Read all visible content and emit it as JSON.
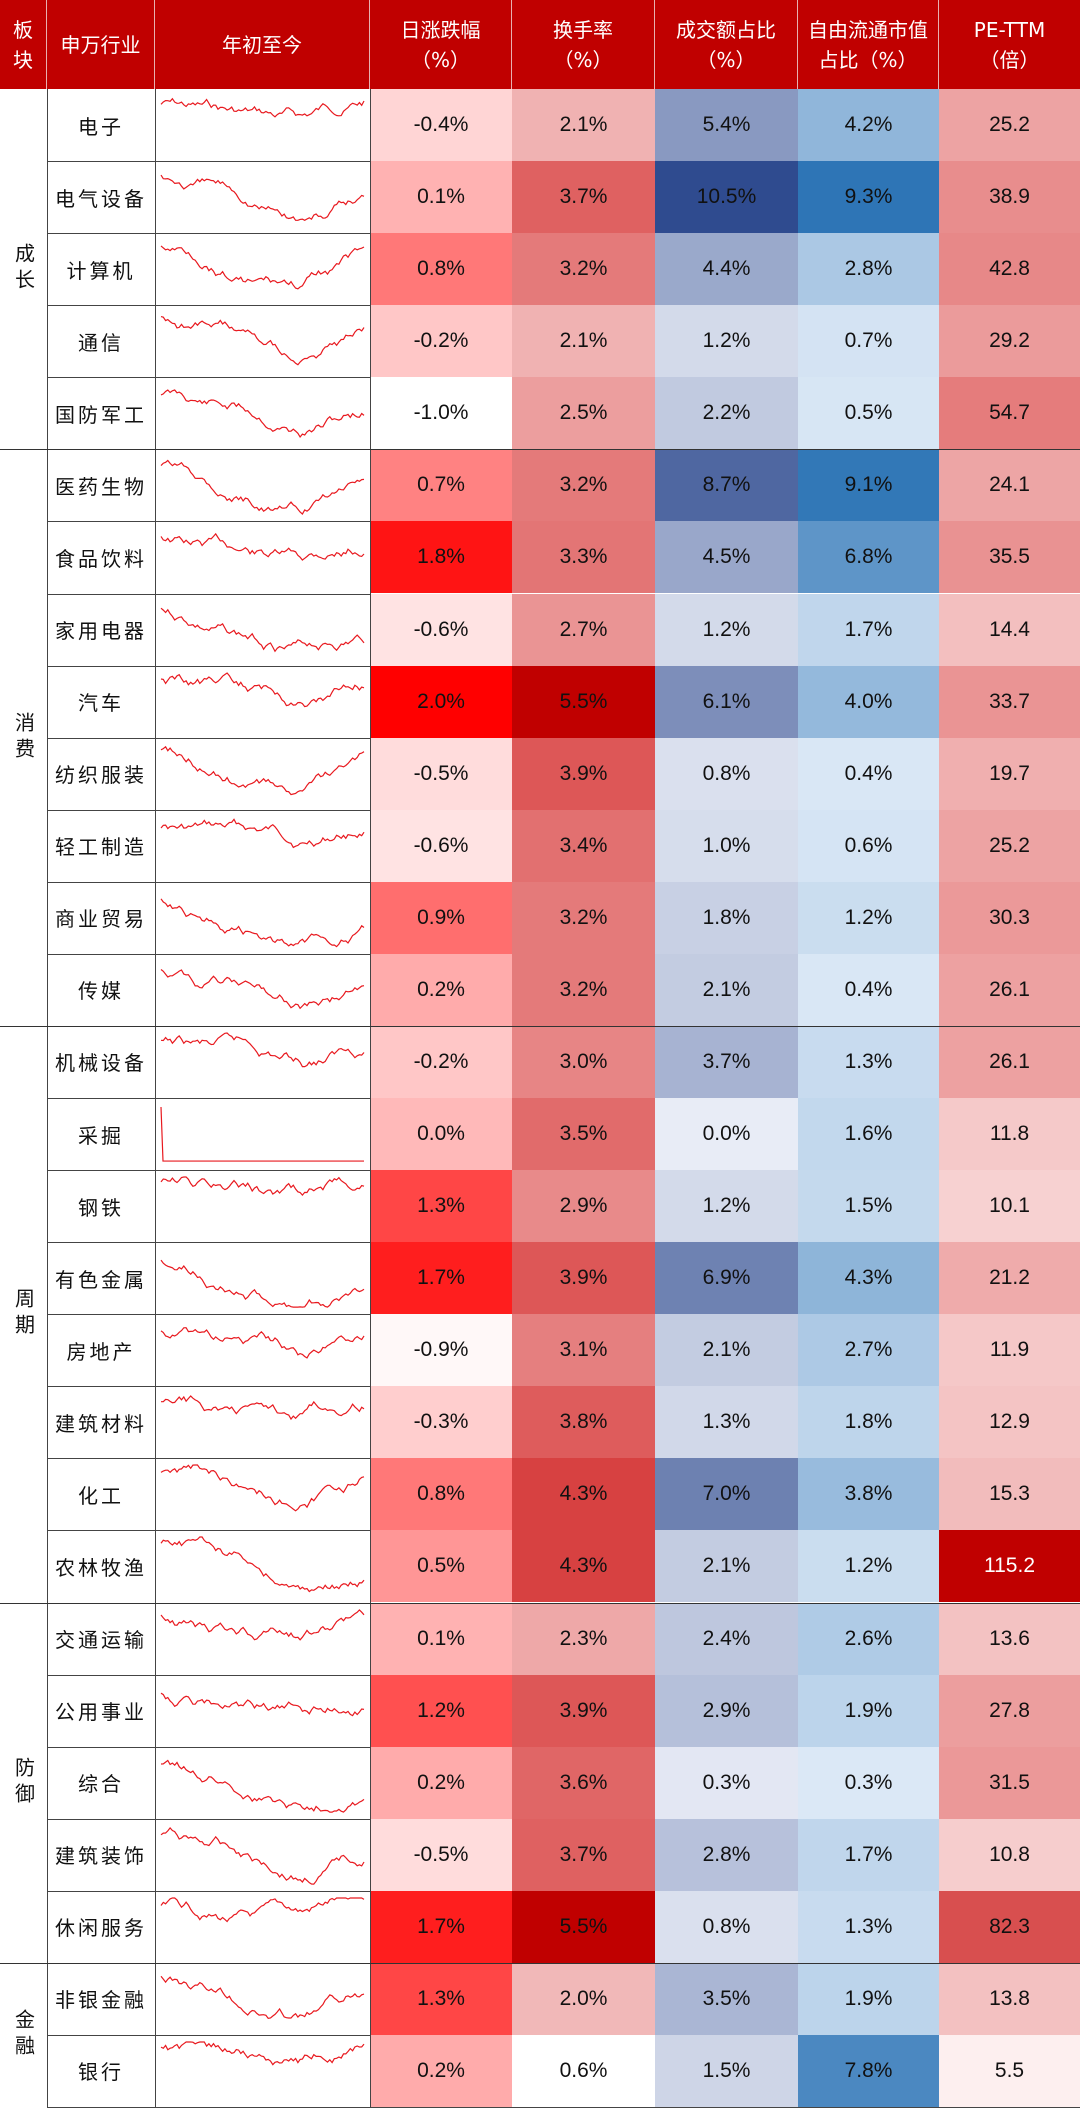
{
  "headers": {
    "sector": "板\n块",
    "industry": "申万行业",
    "ytd": "年初至今",
    "daily_change": "日涨跌幅\n（%）",
    "turnover": "换手率\n（%）",
    "volume_share": "成交额占比\n（%）",
    "float_cap_share": "自由流通市值\n占比（%）",
    "pe_ttm": "PE-TTM\n（倍）"
  },
  "groups": [
    {
      "name": "成长",
      "count": 5
    },
    {
      "name": "消费",
      "count": 8
    },
    {
      "name": "周期",
      "count": 8
    },
    {
      "name": "防御",
      "count": 5
    },
    {
      "name": "金融",
      "count": 2
    }
  ],
  "rows": [
    {
      "industry": "电子",
      "daily_change": "-0.4%",
      "turnover": "2.1%",
      "volume_share": "5.4%",
      "float_cap_share": "4.2%",
      "pe_ttm": "25.2"
    },
    {
      "industry": "电气设备",
      "daily_change": "0.1%",
      "turnover": "3.7%",
      "volume_share": "10.5%",
      "float_cap_share": "9.3%",
      "pe_ttm": "38.9"
    },
    {
      "industry": "计算机",
      "daily_change": "0.8%",
      "turnover": "3.2%",
      "volume_share": "4.4%",
      "float_cap_share": "2.8%",
      "pe_ttm": "42.8"
    },
    {
      "industry": "通信",
      "daily_change": "-0.2%",
      "turnover": "2.1%",
      "volume_share": "1.2%",
      "float_cap_share": "0.7%",
      "pe_ttm": "29.2"
    },
    {
      "industry": "国防军工",
      "daily_change": "-1.0%",
      "turnover": "2.5%",
      "volume_share": "2.2%",
      "float_cap_share": "0.5%",
      "pe_ttm": "54.7"
    },
    {
      "industry": "医药生物",
      "daily_change": "0.7%",
      "turnover": "3.2%",
      "volume_share": "8.7%",
      "float_cap_share": "9.1%",
      "pe_ttm": "24.1"
    },
    {
      "industry": "食品饮料",
      "daily_change": "1.8%",
      "turnover": "3.3%",
      "volume_share": "4.5%",
      "float_cap_share": "6.8%",
      "pe_ttm": "35.5"
    },
    {
      "industry": "家用电器",
      "daily_change": "-0.6%",
      "turnover": "2.7%",
      "volume_share": "1.2%",
      "float_cap_share": "1.7%",
      "pe_ttm": "14.4"
    },
    {
      "industry": "汽车",
      "daily_change": "2.0%",
      "turnover": "5.5%",
      "volume_share": "6.1%",
      "float_cap_share": "4.0%",
      "pe_ttm": "33.7"
    },
    {
      "industry": "纺织服装",
      "daily_change": "-0.5%",
      "turnover": "3.9%",
      "volume_share": "0.8%",
      "float_cap_share": "0.4%",
      "pe_ttm": "19.7"
    },
    {
      "industry": "轻工制造",
      "daily_change": "-0.6%",
      "turnover": "3.4%",
      "volume_share": "1.0%",
      "float_cap_share": "0.6%",
      "pe_ttm": "25.2"
    },
    {
      "industry": "商业贸易",
      "daily_change": "0.9%",
      "turnover": "3.2%",
      "volume_share": "1.8%",
      "float_cap_share": "1.2%",
      "pe_ttm": "30.3"
    },
    {
      "industry": "传媒",
      "daily_change": "0.2%",
      "turnover": "3.2%",
      "volume_share": "2.1%",
      "float_cap_share": "0.4%",
      "pe_ttm": "26.1"
    },
    {
      "industry": "机械设备",
      "daily_change": "-0.2%",
      "turnover": "3.0%",
      "volume_share": "3.7%",
      "float_cap_share": "1.3%",
      "pe_ttm": "26.1"
    },
    {
      "industry": "采掘",
      "daily_change": "0.0%",
      "turnover": "3.5%",
      "volume_share": "0.0%",
      "float_cap_share": "1.6%",
      "pe_ttm": "11.8"
    },
    {
      "industry": "钢铁",
      "daily_change": "1.3%",
      "turnover": "2.9%",
      "volume_share": "1.2%",
      "float_cap_share": "1.5%",
      "pe_ttm": "10.1"
    },
    {
      "industry": "有色金属",
      "daily_change": "1.7%",
      "turnover": "3.9%",
      "volume_share": "6.9%",
      "float_cap_share": "4.3%",
      "pe_ttm": "21.2"
    },
    {
      "industry": "房地产",
      "daily_change": "-0.9%",
      "turnover": "3.1%",
      "volume_share": "2.1%",
      "float_cap_share": "2.7%",
      "pe_ttm": "11.9"
    },
    {
      "industry": "建筑材料",
      "daily_change": "-0.3%",
      "turnover": "3.8%",
      "volume_share": "1.3%",
      "float_cap_share": "1.8%",
      "pe_ttm": "12.9"
    },
    {
      "industry": "化工",
      "daily_change": "0.8%",
      "turnover": "4.3%",
      "volume_share": "7.0%",
      "float_cap_share": "3.8%",
      "pe_ttm": "15.3"
    },
    {
      "industry": "农林牧渔",
      "daily_change": "0.5%",
      "turnover": "4.3%",
      "volume_share": "2.1%",
      "float_cap_share": "1.2%",
      "pe_ttm": "115.2"
    },
    {
      "industry": "交通运输",
      "daily_change": "0.1%",
      "turnover": "2.3%",
      "volume_share": "2.4%",
      "float_cap_share": "2.6%",
      "pe_ttm": "13.6"
    },
    {
      "industry": "公用事业",
      "daily_change": "1.2%",
      "turnover": "3.9%",
      "volume_share": "2.9%",
      "float_cap_share": "1.9%",
      "pe_ttm": "27.8"
    },
    {
      "industry": "综合",
      "daily_change": "0.2%",
      "turnover": "3.6%",
      "volume_share": "0.3%",
      "float_cap_share": "0.3%",
      "pe_ttm": "31.5"
    },
    {
      "industry": "建筑装饰",
      "daily_change": "-0.5%",
      "turnover": "3.7%",
      "volume_share": "2.8%",
      "float_cap_share": "1.7%",
      "pe_ttm": "10.8"
    },
    {
      "industry": "休闲服务",
      "daily_change": "1.7%",
      "turnover": "5.5%",
      "volume_share": "0.8%",
      "float_cap_share": "1.3%",
      "pe_ttm": "82.3"
    },
    {
      "industry": "非银金融",
      "daily_change": "1.3%",
      "turnover": "2.0%",
      "volume_share": "3.5%",
      "float_cap_share": "1.9%",
      "pe_ttm": "13.8"
    },
    {
      "industry": "银行",
      "daily_change": "0.2%",
      "turnover": "0.6%",
      "volume_share": "1.5%",
      "float_cap_share": "7.8%",
      "pe_ttm": "5.5"
    }
  ],
  "colors": {
    "header_bg": "#c00000",
    "header_text": "#ffffff",
    "sparkline": "#e8191f",
    "positive_high": "#ff0000",
    "negative_low": "#ffffff",
    "blue_high": "#2e75b6",
    "navy_high": "#2f4b8f"
  }
}
